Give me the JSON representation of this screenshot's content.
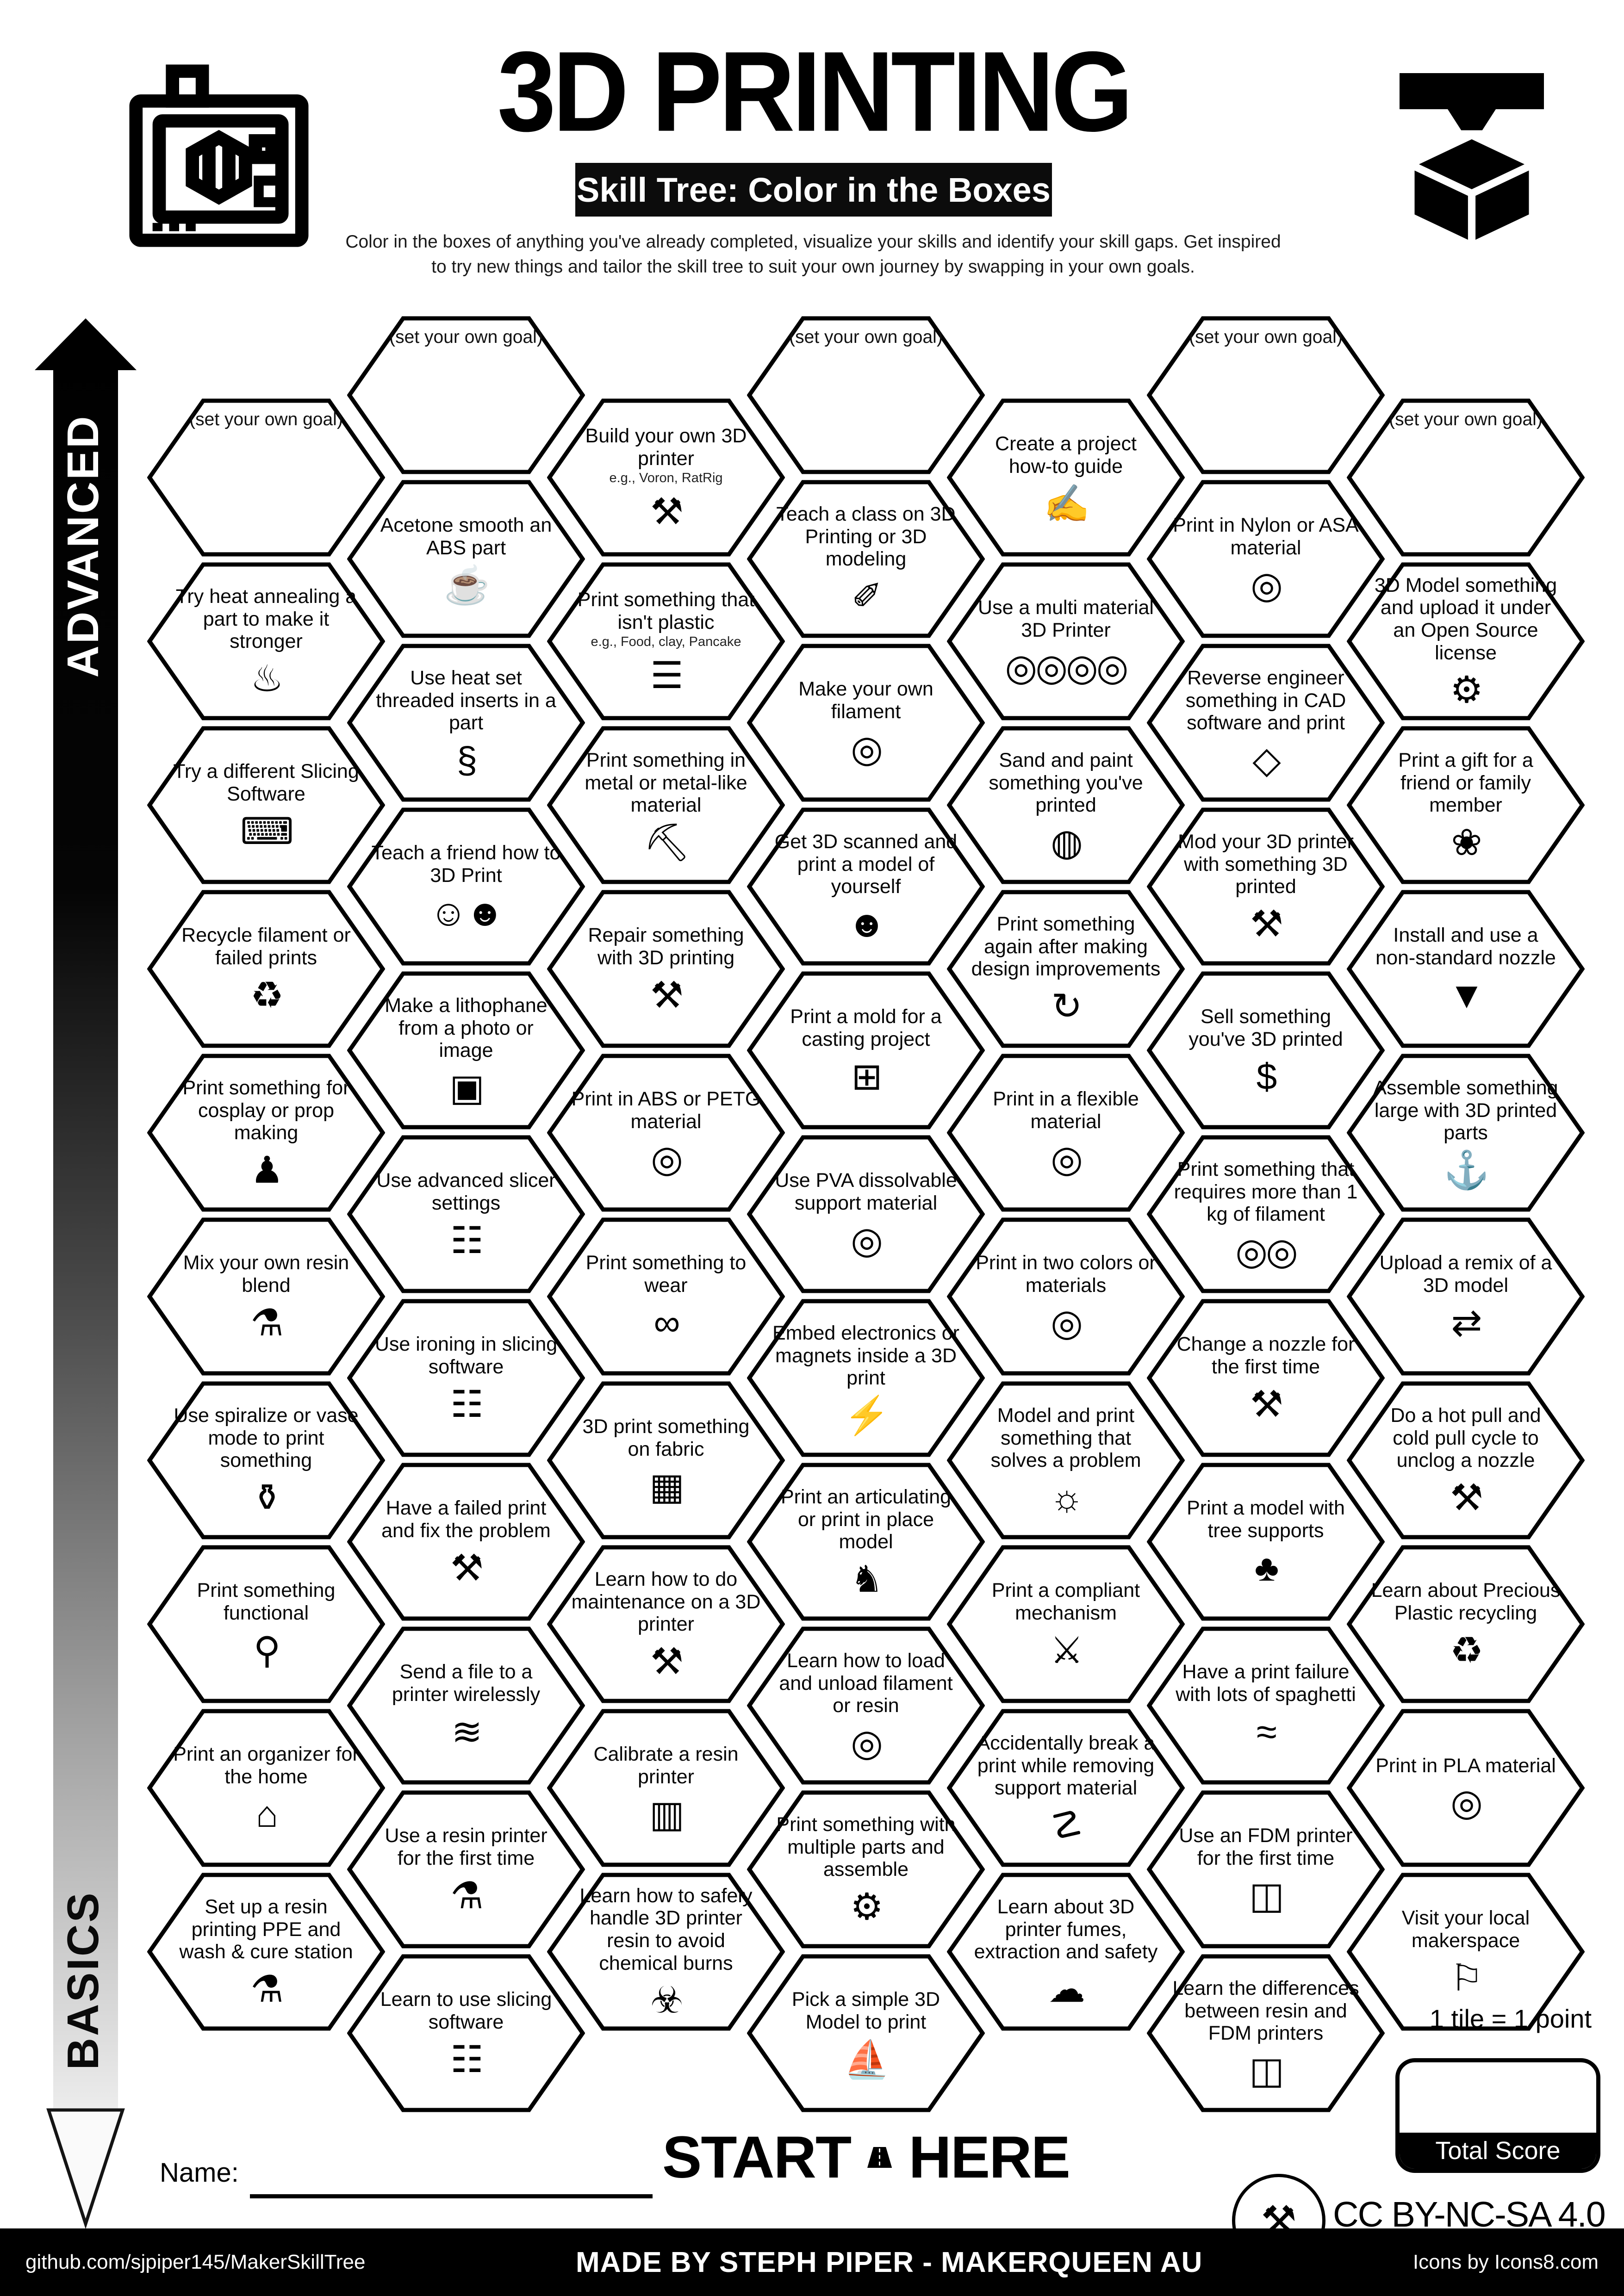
{
  "header": {
    "title": "3D PRINTING",
    "subtitle": "Skill Tree: Color in the Boxes",
    "description_line1": "Color in the boxes of anything you've already completed, visualize your skills and identify your skill gaps.  Get inspired",
    "description_line2": "to try new things and tailor the skill tree to suit your own journey by swapping in your own goals."
  },
  "axis": {
    "advanced": "ADVANCED",
    "basics": "BASICS"
  },
  "start": {
    "start": "START",
    "here": "HERE"
  },
  "score": {
    "tile_points": "1 tile = 1 point",
    "total_label": "Total Score"
  },
  "name_label": "Name:",
  "license": "CC BY-NC-SA 4.0",
  "footer": {
    "left": "github.com/sjpiper145/MakerSkillTree",
    "center": "MADE BY STEPH PIPER  -  MAKERQUEEN AU",
    "right": "Icons by Icons8.com"
  },
  "grid": {
    "columns": [
      {
        "hexes": [
          {
            "label": "(set your own goal)",
            "goal": true
          },
          {
            "label": "Try heat annealing a part to make it stronger",
            "icon": "thermometer-icon",
            "glyph": "♨"
          },
          {
            "label": "Try a different Slicing Software",
            "icon": "laptop-gear-icon",
            "glyph": "⌨"
          },
          {
            "label": "Recycle filament or failed prints",
            "icon": "recycle-icon",
            "glyph": "♻"
          },
          {
            "label": "Print something for cosplay or prop making",
            "icon": "mannequin-icon",
            "glyph": "♟"
          },
          {
            "label": "Mix your own resin blend",
            "icon": "resin-drop-icon",
            "glyph": "⚗"
          },
          {
            "label": "Use spiralize or vase mode to print something",
            "icon": "vase-icon",
            "glyph": "⚱"
          },
          {
            "label": "Print something functional",
            "icon": "desk-lamp-icon",
            "glyph": "⚲"
          },
          {
            "label": "Print an organizer for the home",
            "icon": "home-organizer-icon",
            "glyph": "⌂"
          },
          {
            "label": "Set up a resin printing PPE and wash & cure station",
            "icon": "resin-drop-icon",
            "glyph": "⚗"
          }
        ]
      },
      {
        "hexes": [
          {
            "label": "(set your own goal)",
            "goal": true
          },
          {
            "label": "Acetone smooth an ABS part",
            "icon": "vapor-bath-icon",
            "glyph": "☕"
          },
          {
            "label": "Use heat set threaded inserts in a part",
            "icon": "threaded-insert-icon",
            "glyph": "§"
          },
          {
            "label": "Teach a friend how to 3D Print",
            "icon": "two-people-icon",
            "glyph": "☺☻"
          },
          {
            "label": "Make a lithophane from a photo or image",
            "icon": "photo-icon",
            "glyph": "▣"
          },
          {
            "label": "Use advanced slicer settings",
            "icon": "sliced-model-icon",
            "glyph": "☷"
          },
          {
            "label": "Use ironing in slicing software",
            "icon": "sliced-model-icon",
            "glyph": "☷"
          },
          {
            "label": "Have a failed print and fix the problem",
            "icon": "wrench-screwdriver-icon",
            "glyph": "⚒"
          },
          {
            "label": "Send a file to a printer wirelessly",
            "icon": "wifi-icon",
            "glyph": "≋"
          },
          {
            "label": "Use a resin printer for the first time",
            "icon": "resin-drop-icon",
            "glyph": "⚗"
          },
          {
            "label": "Learn to use slicing software",
            "icon": "sliced-model-icon",
            "glyph": "☷"
          }
        ]
      },
      {
        "hexes": [
          {
            "label": "Build your own 3D printer",
            "sub": "e.g., Voron, RatRig",
            "icon": "wrench-screwdriver-icon",
            "glyph": "⚒"
          },
          {
            "label": "Print something that isn't plastic",
            "sub": "e.g., Food, clay, Pancake",
            "icon": "pancake-stack-icon",
            "glyph": "☰"
          },
          {
            "label": "Print something in metal or metal-like material",
            "icon": "anvil-icon",
            "glyph": "⛏"
          },
          {
            "label": "Repair something with 3D printing",
            "icon": "wrench-screwdriver-icon",
            "glyph": "⚒"
          },
          {
            "label": "Print in ABS or PETG material",
            "icon": "filament-spool-icon",
            "glyph": "◎"
          },
          {
            "label": "Print something to wear",
            "icon": "sunglasses-icon",
            "glyph": "∞"
          },
          {
            "label": "3D print something on fabric",
            "icon": "fabric-icon",
            "glyph": "▦"
          },
          {
            "label": "Learn how to do maintenance on a 3D printer",
            "icon": "wrench-screwdriver-icon",
            "glyph": "⚒"
          },
          {
            "label": "Calibrate a resin printer",
            "icon": "ruler-icon",
            "glyph": "▥"
          },
          {
            "label": "Learn how to safely handle 3D printer resin to avoid chemical burns",
            "icon": "chemical-hazard-icon",
            "glyph": "☣"
          }
        ]
      },
      {
        "hexes": [
          {
            "label": "(set your own goal)",
            "goal": true
          },
          {
            "label": "Teach a class on 3D Printing or 3D modeling",
            "icon": "presenter-icon",
            "glyph": "✐"
          },
          {
            "label": "Make your own filament",
            "icon": "filament-spool-icon",
            "glyph": "◎"
          },
          {
            "label": "Get 3D scanned and print a model of yourself",
            "icon": "scanned-person-icon",
            "glyph": "☻"
          },
          {
            "label": "Print a mold for a casting project",
            "icon": "mold-icon",
            "glyph": "⊞"
          },
          {
            "label": "Use PVA dissolvable support material",
            "icon": "filament-spool-icon",
            "glyph": "◎"
          },
          {
            "label": "Embed electronics or magnets inside a 3D print",
            "icon": "led-icon",
            "glyph": "⚡"
          },
          {
            "label": "Print an articulating or print in place model",
            "icon": "dragon-icon",
            "glyph": "♞"
          },
          {
            "label": "Learn how to load and unload filament or resin",
            "icon": "filament-spool-icon",
            "glyph": "◎"
          },
          {
            "label": "Print something with multiple parts and assemble",
            "icon": "toy-train-icon",
            "glyph": "⚙"
          },
          {
            "label": "Pick a simple 3D Model to print",
            "icon": "benchy-boat-icon",
            "glyph": "⛵"
          }
        ]
      },
      {
        "hexes": [
          {
            "label": "Create a project how-to guide",
            "icon": "document-icon",
            "glyph": "✍"
          },
          {
            "label": "Use a multi material 3D Printer",
            "icon": "multi-spool-icon",
            "glyph": "◎◎◎◎"
          },
          {
            "label": "Sand and paint something you've printed",
            "icon": "paint-can-icon",
            "glyph": "◍"
          },
          {
            "label": "Print something again after making design improvements",
            "icon": "iterate-icon",
            "glyph": "↻"
          },
          {
            "label": "Print in a flexible material",
            "icon": "filament-spool-icon",
            "glyph": "◎"
          },
          {
            "label": "Print in two colors or materials",
            "icon": "filament-spool-icon",
            "glyph": "◎"
          },
          {
            "label": "Model and print something that solves a problem",
            "icon": "lightbulb-icon",
            "glyph": "☼"
          },
          {
            "label": "Print a compliant mechanism",
            "icon": "toy-blaster-icon",
            "glyph": "⚔"
          },
          {
            "label": "Accidentally break a print while removing support material",
            "icon": "elephant-icon",
            "glyph": "☡"
          },
          {
            "label": "Learn about 3D printer fumes, extraction and safety",
            "icon": "fume-extractor-icon",
            "glyph": "☁"
          }
        ]
      },
      {
        "hexes": [
          {
            "label": "(set your own goal)",
            "goal": true
          },
          {
            "label": "Print in Nylon or ASA material",
            "icon": "filament-spool-icon",
            "glyph": "◎"
          },
          {
            "label": "Reverse engineer something in CAD software and print",
            "icon": "cad-cube-icon",
            "glyph": "◇"
          },
          {
            "label": "Mod your 3D printer with something 3D printed",
            "icon": "wrench-screwdriver-icon",
            "glyph": "⚒"
          },
          {
            "label": "Sell something you've 3D printed",
            "icon": "money-bag-icon",
            "glyph": "$"
          },
          {
            "label": "Print something that requires more than 1 kg of filament",
            "icon": "two-spool-icon",
            "glyph": "◎◎"
          },
          {
            "label": "Change a nozzle for the first time",
            "icon": "wrench-screwdriver-icon",
            "glyph": "⚒"
          },
          {
            "label": "Print a model with tree supports",
            "icon": "tree-icon",
            "glyph": "♣"
          },
          {
            "label": "Have a print failure with lots of spaghetti",
            "icon": "spaghetti-bowl-icon",
            "glyph": "≈"
          },
          {
            "label": "Use an FDM printer for the first time",
            "icon": "fdm-printer-icon",
            "glyph": "◫"
          },
          {
            "label": "Learn the differences between resin and FDM printers",
            "icon": "fdm-printer-icon",
            "glyph": "◫"
          }
        ]
      },
      {
        "hexes": [
          {
            "label": "(set your own goal)",
            "goal": true
          },
          {
            "label": "3D Model something and upload it under an Open Source license",
            "icon": "open-source-icon",
            "glyph": "⚙"
          },
          {
            "label": "Print a gift for a friend or family member",
            "icon": "gift-bow-icon",
            "glyph": "❀"
          },
          {
            "label": "Install and use a non-standard nozzle",
            "icon": "nozzle-icon",
            "glyph": "▼"
          },
          {
            "label": "Assemble something large with 3D printed parts",
            "icon": "whale-icon",
            "glyph": "⚓"
          },
          {
            "label": "Upload a remix of a 3D model",
            "icon": "remix-arrows-icon",
            "glyph": "⇄"
          },
          {
            "label": "Do a hot pull and cold pull cycle to unclog a nozzle",
            "icon": "wrench-screwdriver-icon",
            "glyph": "⚒"
          },
          {
            "label": "Learn about Precious Plastic recycling",
            "icon": "recycle-icon",
            "glyph": "♻"
          },
          {
            "label": "Print in PLA material",
            "icon": "filament-spool-icon",
            "glyph": "◎"
          },
          {
            "label": "Visit your local makerspace",
            "icon": "location-pin-icon",
            "glyph": "⚐"
          }
        ]
      }
    ]
  }
}
